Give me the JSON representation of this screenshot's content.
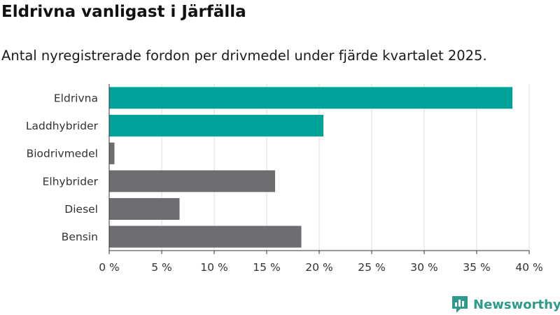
{
  "title": "Eldrivna vanligast i Järfälla",
  "subtitle": "Antal nyregistrerade fordon per drivmedel under fjärde kvartalet 2025.",
  "brand": {
    "name": "Newsworthy",
    "icon": "newsworthy-logo-icon",
    "color": "#2e9a8c"
  },
  "colors": {
    "highlight": "#00a39a",
    "default": "#6e6d72",
    "grid": "#dddddd",
    "axis": "#333333"
  },
  "chart_data": {
    "type": "bar",
    "orientation": "horizontal",
    "categories": [
      "Eldrivna",
      "Laddhybrider",
      "Biodrivmedel",
      "Elhybrider",
      "Diesel",
      "Bensin"
    ],
    "values": [
      38.4,
      20.4,
      0.5,
      15.8,
      6.7,
      18.3
    ],
    "highlighted": [
      true,
      true,
      false,
      false,
      false,
      false
    ],
    "xlim": [
      0,
      40
    ],
    "xticks": [
      0,
      5,
      10,
      15,
      20,
      25,
      30,
      35,
      40
    ],
    "tick_labels": [
      "0 %",
      "5 %",
      "10 %",
      "15 %",
      "20 %",
      "25 %",
      "30 %",
      "35 %",
      "40 %"
    ],
    "title": "Eldrivna vanligast i Järfälla",
    "xlabel": "",
    "ylabel": "",
    "grid": true
  }
}
